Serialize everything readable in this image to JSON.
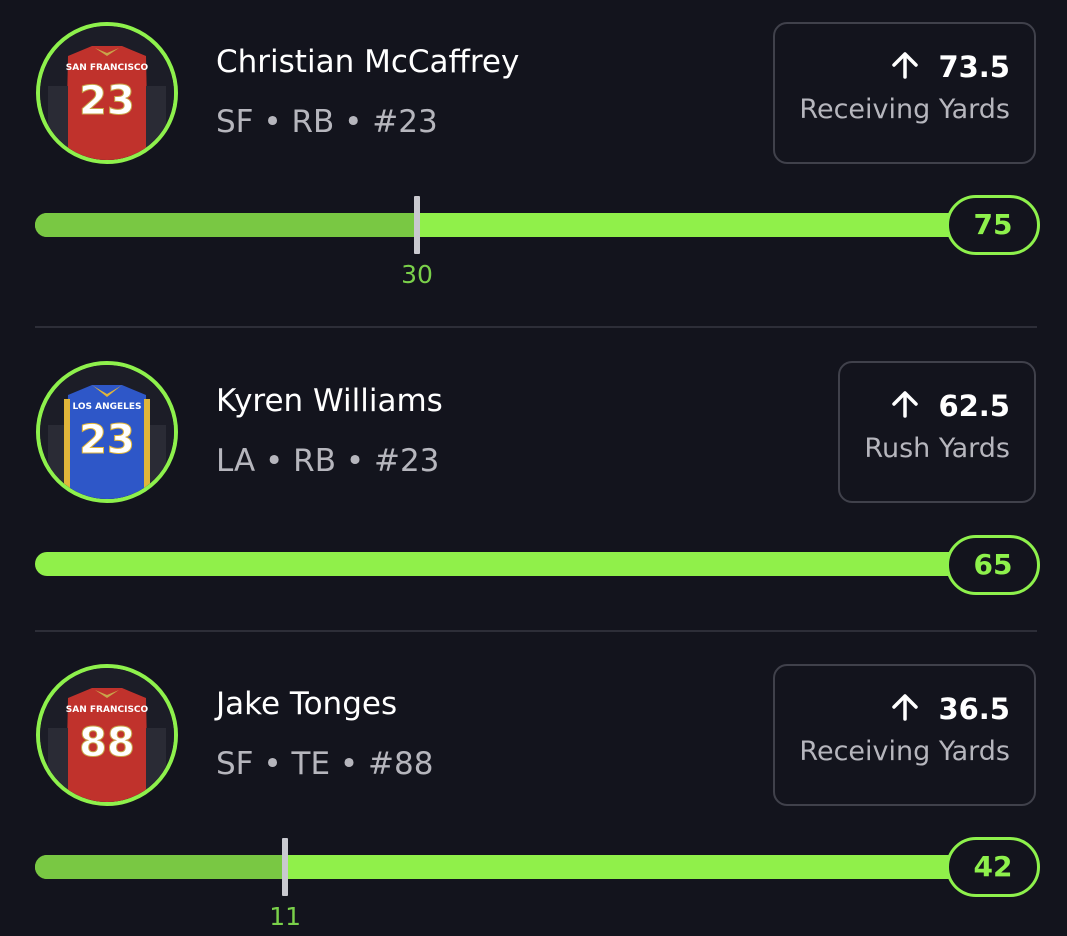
{
  "players": [
    {
      "name": "Christian McCaffrey",
      "meta": "SF • RB • #23",
      "jersey": {
        "team_text": "SAN FRANCISCO",
        "number": "23",
        "body_color": "#c0322c",
        "accent": "#c9a44a"
      },
      "stat": {
        "value": "73.5",
        "label": "Receiving Yards"
      },
      "bar": {
        "max_label": "75",
        "max": 75,
        "marker": 30,
        "marker_label": "30"
      }
    },
    {
      "name": "Kyren Williams",
      "meta": "LA • RB • #23",
      "jersey": {
        "team_text": "LOS ANGELES",
        "number": "23",
        "body_color": "#2e57c8",
        "accent": "#e0b53a"
      },
      "stat": {
        "value": "62.5",
        "label": "Rush Yards"
      },
      "bar": {
        "max_label": "65",
        "max": 65,
        "marker": null,
        "marker_label": ""
      }
    },
    {
      "name": "Jake Tonges",
      "meta": "SF • TE • #88",
      "jersey": {
        "team_text": "SAN FRANCISCO",
        "number": "88",
        "body_color": "#c0322c",
        "accent": "#c9a44a"
      },
      "stat": {
        "value": "36.5",
        "label": "Receiving Yards"
      },
      "bar": {
        "max_label": "42",
        "max": 42,
        "marker": 11,
        "marker_label": "11"
      }
    }
  ],
  "colors": {
    "accent_green": "#8ef14c",
    "background": "#13141d"
  },
  "icons": {
    "stat_arrow": "arrow-up-icon"
  }
}
